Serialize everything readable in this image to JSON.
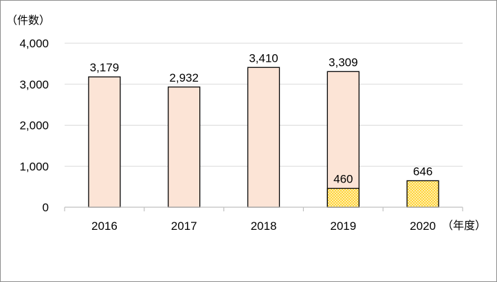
{
  "chart_data": {
    "type": "bar",
    "y_unit_label": "（件数）",
    "x_unit_label": "（年度）",
    "categories": [
      "2016",
      "2017",
      "2018",
      "2019",
      "2020"
    ],
    "series": [
      {
        "values": [
          3179,
          2932,
          3410,
          3309,
          null
        ],
        "labels": [
          "3,179",
          "2,932",
          "3,410",
          "3,309",
          ""
        ],
        "color": "#fce4d6",
        "pattern": "solid"
      },
      {
        "values": [
          null,
          null,
          null,
          460,
          646
        ],
        "labels": [
          "",
          "",
          "",
          "460",
          "646"
        ],
        "color": "#ffd43a",
        "pattern": "dotted"
      }
    ],
    "ylim": [
      0,
      4000
    ],
    "yticks": [
      0,
      1000,
      2000,
      3000,
      4000
    ],
    "ytick_labels": [
      "0",
      "1,000",
      "2,000",
      "3,000",
      "4,000"
    ],
    "grid": true,
    "legend": "none"
  }
}
